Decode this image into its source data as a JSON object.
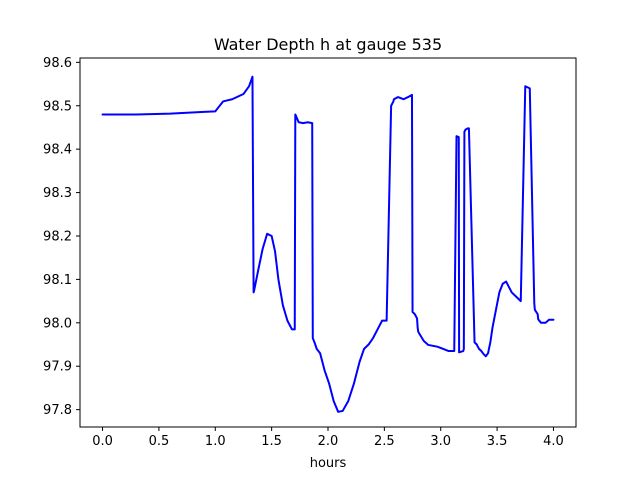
{
  "chart_data": {
    "type": "line",
    "title": "Water Depth h at gauge 535",
    "xlabel": "hours",
    "ylabel": "",
    "xlim": [
      -0.2,
      4.2
    ],
    "ylim": [
      97.76,
      98.61
    ],
    "xticks": [
      0.0,
      0.5,
      1.0,
      1.5,
      2.0,
      2.5,
      3.0,
      3.5,
      4.0
    ],
    "xtick_labels": [
      "0.0",
      "0.5",
      "1.0",
      "1.5",
      "2.0",
      "2.5",
      "3.0",
      "3.5",
      "4.0"
    ],
    "yticks": [
      97.8,
      97.9,
      98.0,
      98.1,
      98.2,
      98.3,
      98.4,
      98.5,
      98.6
    ],
    "ytick_labels": [
      "97.8",
      "97.9",
      "98.0",
      "98.1",
      "98.2",
      "98.3",
      "98.4",
      "98.5",
      "98.6"
    ],
    "grid": false,
    "legend": "none",
    "series": [
      {
        "color": "#0000ff",
        "x": [
          0.0,
          0.3,
          0.6,
          0.9,
          1.0,
          1.03,
          1.07,
          1.1,
          1.15,
          1.2,
          1.25,
          1.3,
          1.33,
          1.34,
          1.345,
          1.38,
          1.42,
          1.46,
          1.5,
          1.53,
          1.56,
          1.6,
          1.64,
          1.68,
          1.705,
          1.71,
          1.74,
          1.78,
          1.82,
          1.86,
          1.865,
          1.88,
          1.9,
          1.93,
          1.97,
          2.01,
          2.05,
          2.09,
          2.13,
          2.18,
          2.23,
          2.28,
          2.32,
          2.36,
          2.4,
          2.44,
          2.48,
          2.52,
          2.56,
          2.58,
          2.585,
          2.62,
          2.67,
          2.71,
          2.745,
          2.75,
          2.77,
          2.79,
          2.795,
          2.8,
          2.81,
          2.85,
          2.89,
          2.93,
          2.97,
          3.02,
          3.07,
          3.12,
          3.14,
          3.16,
          3.163,
          3.2,
          3.205,
          3.21,
          3.22,
          3.24,
          3.25,
          3.3,
          3.32,
          3.325,
          3.34,
          3.36,
          3.38,
          3.4,
          3.42,
          3.44,
          3.46,
          3.49,
          3.52,
          3.55,
          3.58,
          3.6,
          3.63,
          3.67,
          3.71,
          3.75,
          3.79,
          3.83,
          3.835,
          3.86,
          3.865,
          3.89,
          3.93,
          3.96,
          4.0
        ],
        "y": [
          98.48,
          98.48,
          98.482,
          98.486,
          98.487,
          98.497,
          98.51,
          98.512,
          98.515,
          98.521,
          98.527,
          98.545,
          98.567,
          98.07,
          98.075,
          98.12,
          98.17,
          98.205,
          98.2,
          98.165,
          98.1,
          98.04,
          98.005,
          97.985,
          97.985,
          98.48,
          98.462,
          98.46,
          98.462,
          98.46,
          97.965,
          97.955,
          97.94,
          97.93,
          97.89,
          97.86,
          97.82,
          97.795,
          97.797,
          97.82,
          97.86,
          97.91,
          97.94,
          97.95,
          97.965,
          97.985,
          98.005,
          98.005,
          98.5,
          98.51,
          98.515,
          98.52,
          98.515,
          98.52,
          98.525,
          98.025,
          98.02,
          98.01,
          97.99,
          97.98,
          97.975,
          97.958,
          97.949,
          97.947,
          97.945,
          97.94,
          97.935,
          97.935,
          98.43,
          98.428,
          97.932,
          97.935,
          97.94,
          98.44,
          98.445,
          98.448,
          98.448,
          97.955,
          97.95,
          97.947,
          97.94,
          97.935,
          97.928,
          97.923,
          97.93,
          97.955,
          97.99,
          98.03,
          98.07,
          98.09,
          98.095,
          98.085,
          98.07,
          98.06,
          98.05,
          98.545,
          98.54,
          98.045,
          98.03,
          98.02,
          98.008,
          98.0,
          98.0,
          98.007,
          98.007
        ]
      }
    ]
  }
}
